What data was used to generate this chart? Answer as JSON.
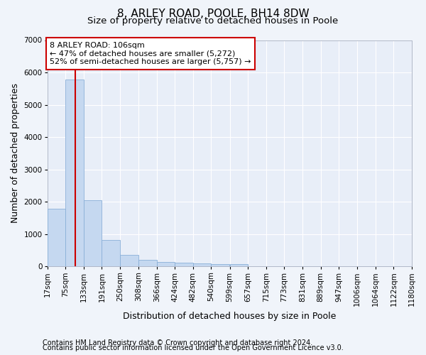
{
  "title1": "8, ARLEY ROAD, POOLE, BH14 8DW",
  "title2": "Size of property relative to detached houses in Poole",
  "xlabel": "Distribution of detached houses by size in Poole",
  "ylabel": "Number of detached properties",
  "bin_labels": [
    "17sqm",
    "75sqm",
    "133sqm",
    "191sqm",
    "250sqm",
    "308sqm",
    "366sqm",
    "424sqm",
    "482sqm",
    "540sqm",
    "599sqm",
    "657sqm",
    "715sqm",
    "773sqm",
    "831sqm",
    "889sqm",
    "947sqm",
    "1006sqm",
    "1064sqm",
    "1122sqm",
    "1180sqm"
  ],
  "bin_edges": [
    17,
    75,
    133,
    191,
    250,
    308,
    366,
    424,
    482,
    540,
    599,
    657,
    715,
    773,
    831,
    889,
    947,
    1006,
    1064,
    1122,
    1180
  ],
  "bar_heights": [
    1780,
    5780,
    2060,
    820,
    360,
    215,
    135,
    110,
    100,
    78,
    70,
    0,
    0,
    0,
    0,
    0,
    0,
    0,
    0,
    0
  ],
  "bar_color": "#c5d8f0",
  "bar_edge_color": "#8ab0d8",
  "property_line_x": 106,
  "property_line_color": "#cc0000",
  "annotation_text": "8 ARLEY ROAD: 106sqm\n← 47% of detached houses are smaller (5,272)\n52% of semi-detached houses are larger (5,757) →",
  "annotation_box_color": "#ffffff",
  "annotation_box_edge_color": "#cc0000",
  "ylim": [
    0,
    7000
  ],
  "yticks": [
    0,
    1000,
    2000,
    3000,
    4000,
    5000,
    6000,
    7000
  ],
  "footer_line1": "Contains HM Land Registry data © Crown copyright and database right 2024.",
  "footer_line2": "Contains public sector information licensed under the Open Government Licence v3.0.",
  "bg_color": "#f0f4fa",
  "plot_bg_color": "#e8eef8",
  "grid_color": "#ffffff",
  "title1_fontsize": 11,
  "title2_fontsize": 9.5,
  "axis_label_fontsize": 9,
  "tick_fontsize": 7.5,
  "annotation_fontsize": 8,
  "footer_fontsize": 7
}
